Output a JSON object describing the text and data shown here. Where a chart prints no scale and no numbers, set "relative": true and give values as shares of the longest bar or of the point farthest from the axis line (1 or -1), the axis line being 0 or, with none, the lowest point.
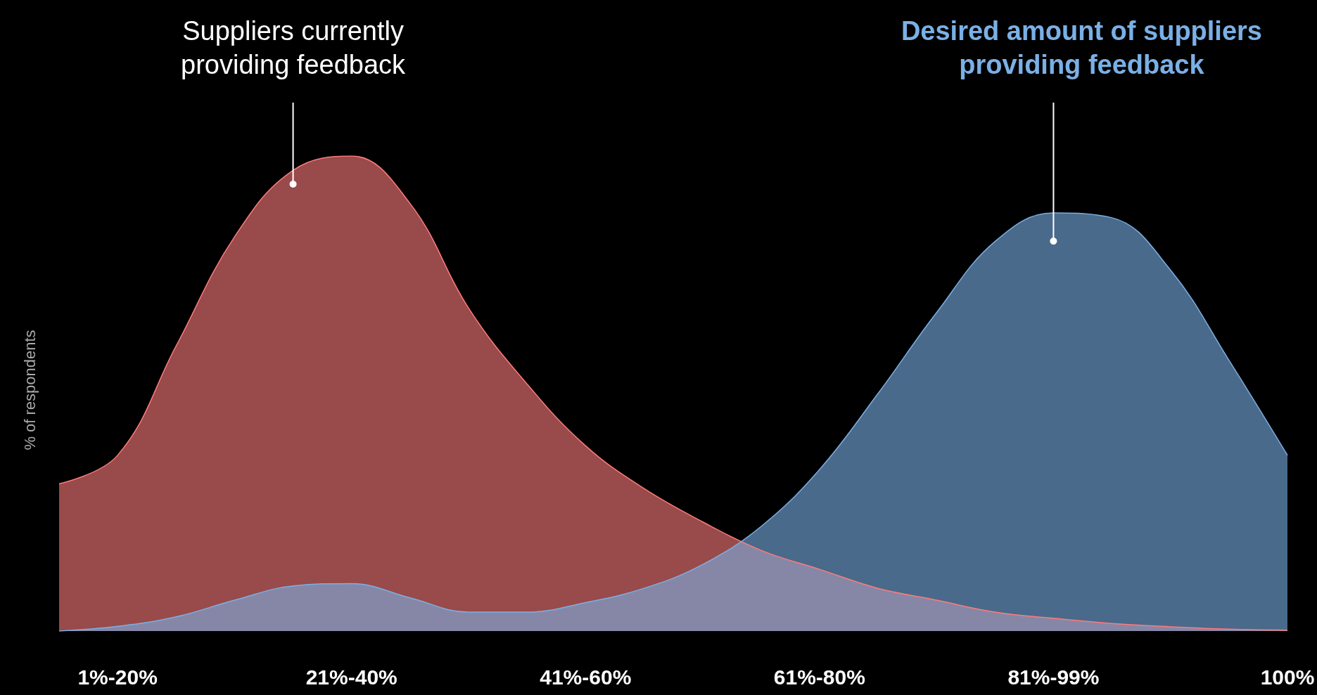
{
  "chart_data": {
    "type": "area",
    "relative": true,
    "ylabel": "% of respondents",
    "grid": false,
    "legend": false,
    "categories": [
      null,
      "1%-20%",
      null,
      null,
      null,
      "21%-40%",
      null,
      null,
      null,
      "41%-60%",
      null,
      null,
      null,
      "61%-80%",
      null,
      null,
      null,
      "81%-99%",
      null,
      null,
      null,
      "100%"
    ],
    "series": [
      {
        "name": "Suppliers currently providing feedback",
        "color": "#ff7b7b",
        "values": [
          0.31,
          0.37,
          0.6,
          0.83,
          0.97,
          1,
          0.9,
          0.68,
          0.52,
          0.39,
          0.3,
          0.23,
          0.17,
          0.13,
          0.09,
          0.065,
          0.04,
          0.027,
          0.016,
          0.009,
          0.004,
          0.002
        ]
      },
      {
        "name": "Desired amount of suppliers providing feedback",
        "color": "#7ab0e6",
        "values": [
          0,
          0.01,
          0.03,
          0.065,
          0.095,
          0.1,
          0.07,
          0.04,
          0.04,
          0.06,
          0.09,
          0.14,
          0.22,
          0.34,
          0.5,
          0.67,
          0.82,
          0.88,
          0.87,
          0.76,
          0.57,
          0.37
        ]
      }
    ]
  }
}
